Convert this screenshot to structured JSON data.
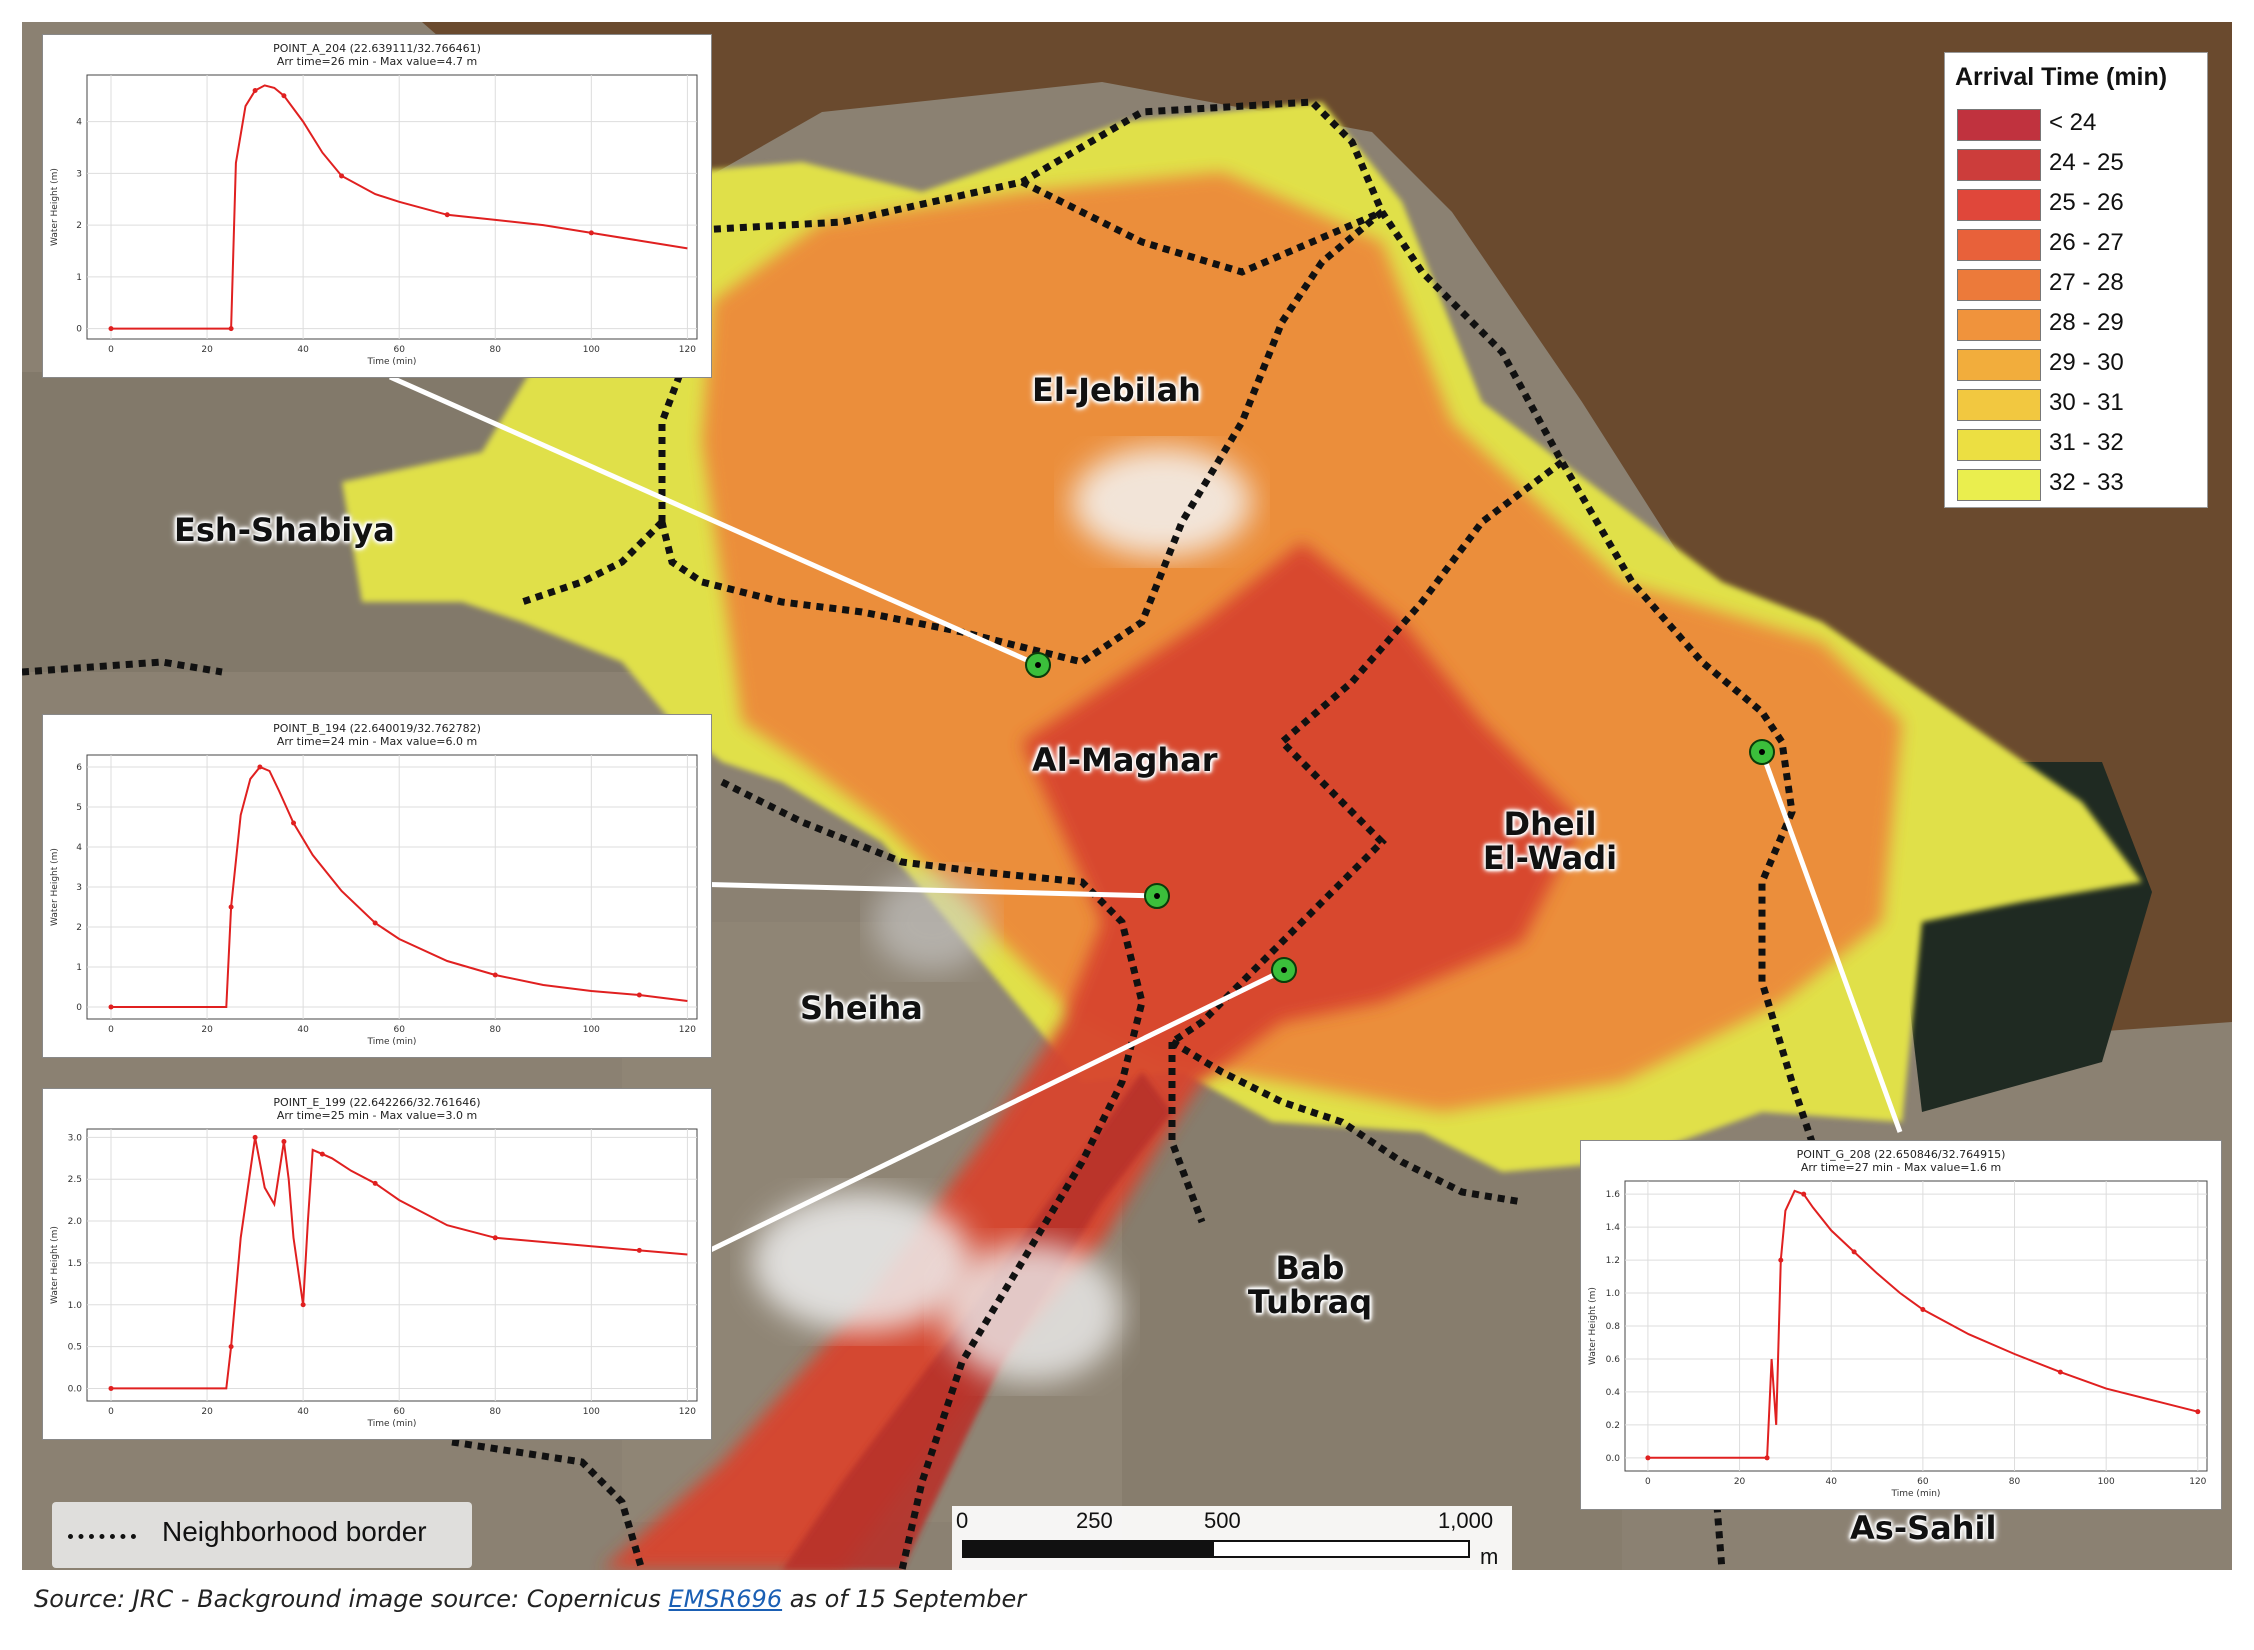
{
  "legend": {
    "title": "Arrival Time (min)",
    "items": [
      {
        "label": "< 24",
        "color": "#c0323e"
      },
      {
        "label": "24 - 25",
        "color": "#cc3d3b"
      },
      {
        "label": "25 - 26",
        "color": "#e0473a"
      },
      {
        "label": "26 - 27",
        "color": "#e8613a"
      },
      {
        "label": "27 - 28",
        "color": "#ec7a3a"
      },
      {
        "label": "28 - 29",
        "color": "#f0933c"
      },
      {
        "label": "29 - 30",
        "color": "#f2ad3c"
      },
      {
        "label": "30 - 31",
        "color": "#f2c840"
      },
      {
        "label": "31 - 32",
        "color": "#ecdf42"
      },
      {
        "label": "32 - 33",
        "color": "#eaee4e"
      }
    ]
  },
  "neighborhoods": {
    "el_jebilah": "El-Jebilah",
    "esh_shabiya": "Esh-Shabiya",
    "al_maghar": "Al-Maghar",
    "dheil_1": "Dheil",
    "dheil_2": "El-Wadi",
    "sheiha": "Sheiha",
    "bab_1": "Bab",
    "bab_2": "Tubraq",
    "as_sahil": "As-Sahil"
  },
  "neighborhood_key": {
    "label": "Neighborhood border"
  },
  "scale_bar": {
    "ticks": [
      "0",
      "250",
      "500",
      "1,000"
    ],
    "unit": "m"
  },
  "source": {
    "prefix": "Source: JRC - Background image source: Copernicus ",
    "link": "EMSR696",
    "suffix": " as of 15 September"
  },
  "colors": {
    "sea": "#6b4a2e",
    "urban": "#8a8070",
    "marker": "#3bbf3b",
    "series": "#e02020"
  },
  "chart_data": [
    {
      "type": "line",
      "title": "POINT_A_204 (22.639111/32.766461)",
      "subtitle": "Arr time=26 min - Max value=4.7 m",
      "xlabel": "Time (min)",
      "ylabel": "Water Height (m)",
      "xlim": [
        -5,
        122
      ],
      "ylim": [
        -0.2,
        4.9
      ],
      "xticks": [
        0,
        20,
        40,
        60,
        80,
        100,
        120
      ],
      "yticks": [
        0,
        1,
        2,
        3,
        4
      ],
      "grid": true,
      "series": [
        {
          "x": [
            0,
            12,
            24,
            25,
            26,
            28,
            30,
            32,
            34,
            36,
            40,
            44,
            48,
            55,
            60,
            70,
            80,
            90,
            100,
            110,
            120
          ],
          "y": [
            0,
            0,
            0,
            0,
            3.2,
            4.3,
            4.6,
            4.7,
            4.65,
            4.5,
            4.0,
            3.4,
            2.95,
            2.6,
            2.45,
            2.2,
            2.1,
            2.0,
            1.85,
            1.7,
            1.55
          ]
        }
      ]
    },
    {
      "type": "line",
      "title": "POINT_B_194 (22.640019/32.762782)",
      "subtitle": "Arr time=24 min - Max value=6.0 m",
      "xlabel": "Time (min)",
      "ylabel": "Water Height (m)",
      "xlim": [
        -5,
        122
      ],
      "ylim": [
        -0.3,
        6.3
      ],
      "xticks": [
        0,
        20,
        40,
        60,
        80,
        100,
        120
      ],
      "yticks": [
        0,
        1,
        2,
        3,
        4,
        5,
        6
      ],
      "grid": true,
      "series": [
        {
          "x": [
            0,
            12,
            24,
            25,
            27,
            29,
            31,
            33,
            35,
            38,
            42,
            48,
            55,
            60,
            70,
            80,
            90,
            100,
            110,
            120
          ],
          "y": [
            0,
            0,
            0,
            2.5,
            4.8,
            5.7,
            6.0,
            5.9,
            5.4,
            4.6,
            3.8,
            2.9,
            2.1,
            1.7,
            1.15,
            0.8,
            0.55,
            0.4,
            0.3,
            0.15
          ]
        }
      ]
    },
    {
      "type": "line",
      "title": "POINT_E_199 (22.642266/32.761646)",
      "subtitle": "Arr time=25 min - Max value=3.0 m",
      "xlabel": "Time (min)",
      "ylabel": "Water Height (m)",
      "xlim": [
        -5,
        122
      ],
      "ylim": [
        -0.15,
        3.1
      ],
      "xticks": [
        0,
        20,
        40,
        60,
        80,
        100,
        120
      ],
      "yticks": [
        0.0,
        0.5,
        1.0,
        1.5,
        2.0,
        2.5,
        3.0
      ],
      "grid": true,
      "series": [
        {
          "x": [
            0,
            12,
            24,
            25,
            27,
            29,
            30,
            32,
            34,
            36,
            37,
            38,
            40,
            41,
            42,
            44,
            46,
            50,
            55,
            60,
            70,
            80,
            90,
            100,
            110,
            120
          ],
          "y": [
            0,
            0,
            0,
            0.5,
            1.8,
            2.6,
            3.0,
            2.4,
            2.2,
            2.95,
            2.5,
            1.8,
            1.0,
            2.0,
            2.85,
            2.8,
            2.75,
            2.6,
            2.45,
            2.25,
            1.95,
            1.8,
            1.75,
            1.7,
            1.65,
            1.6
          ]
        }
      ]
    },
    {
      "type": "line",
      "title": "POINT_G_208 (22.650846/32.764915)",
      "subtitle": "Arr time=27 min - Max value=1.6 m",
      "xlabel": "Time (min)",
      "ylabel": "Water Height (m)",
      "xlim": [
        -5,
        122
      ],
      "ylim": [
        -0.08,
        1.68
      ],
      "xticks": [
        0,
        20,
        40,
        60,
        80,
        100,
        120
      ],
      "yticks": [
        0.0,
        0.2,
        0.4,
        0.6,
        0.8,
        1.0,
        1.2,
        1.4,
        1.6
      ],
      "grid": true,
      "series": [
        {
          "x": [
            0,
            12,
            24,
            26,
            27,
            28,
            29,
            30,
            32,
            34,
            36,
            40,
            45,
            50,
            55,
            60,
            70,
            80,
            90,
            100,
            110,
            120
          ],
          "y": [
            0,
            0,
            0,
            0,
            0.6,
            0.2,
            1.2,
            1.5,
            1.62,
            1.6,
            1.52,
            1.38,
            1.25,
            1.12,
            1.0,
            0.9,
            0.75,
            0.63,
            0.52,
            0.42,
            0.35,
            0.28
          ]
        }
      ]
    }
  ]
}
